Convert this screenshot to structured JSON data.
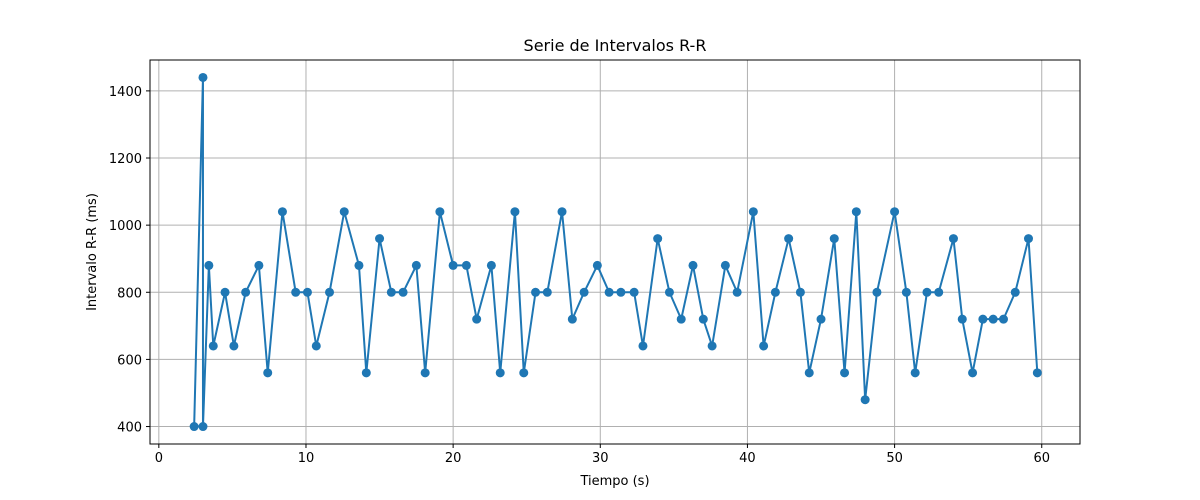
{
  "chart_data": {
    "type": "line",
    "title": "Serie de Intervalos R-R",
    "xlabel": "Tiempo (s)",
    "ylabel": "Intervalo R-R (ms)",
    "xlim": [
      -0.6,
      62.6
    ],
    "ylim": [
      348,
      1492
    ],
    "xticks": [
      0,
      10,
      20,
      30,
      40,
      50,
      60
    ],
    "yticks": [
      400,
      600,
      800,
      1000,
      1200,
      1400
    ],
    "grid": true,
    "marker": "circle",
    "color": "#1f77b4",
    "series": [
      {
        "x": [
          2.4,
          3.0,
          3.0,
          3.4,
          3.7,
          4.5,
          5.1,
          5.9,
          6.8,
          7.4,
          8.4,
          9.3,
          10.1,
          10.7,
          11.6,
          12.6,
          13.6,
          14.1,
          15.0,
          15.8,
          16.6,
          17.5,
          18.1,
          19.1,
          20.0,
          20.9,
          21.6,
          22.6,
          23.2,
          24.2,
          24.8,
          25.6,
          26.4,
          27.4,
          28.1,
          28.9,
          29.8,
          30.6,
          31.4,
          32.3,
          32.9,
          33.9,
          34.7,
          35.5,
          36.3,
          37.0,
          37.6,
          38.5,
          39.3,
          40.4,
          41.1,
          41.9,
          42.8,
          43.6,
          44.2,
          45.0,
          45.9,
          46.6,
          47.4,
          48.0,
          48.8,
          50.0,
          50.8,
          51.4,
          52.2,
          53.0,
          54.0,
          54.6,
          55.3,
          56.0,
          56.7,
          57.4,
          58.2,
          59.1,
          59.7
        ],
        "y": [
          400,
          1440,
          400,
          880,
          640,
          800,
          640,
          800,
          880,
          560,
          1040,
          800,
          800,
          640,
          800,
          1040,
          880,
          560,
          960,
          800,
          800,
          880,
          560,
          1040,
          880,
          880,
          720,
          880,
          560,
          1040,
          560,
          800,
          800,
          1040,
          720,
          800,
          880,
          800,
          800,
          800,
          640,
          960,
          800,
          720,
          880,
          720,
          640,
          880,
          800,
          1040,
          640,
          800,
          960,
          800,
          560,
          720,
          960,
          560,
          1040,
          480,
          800,
          1040,
          800,
          560,
          800,
          800,
          960,
          720,
          560,
          720,
          720,
          720,
          800,
          960,
          560
        ]
      }
    ]
  }
}
